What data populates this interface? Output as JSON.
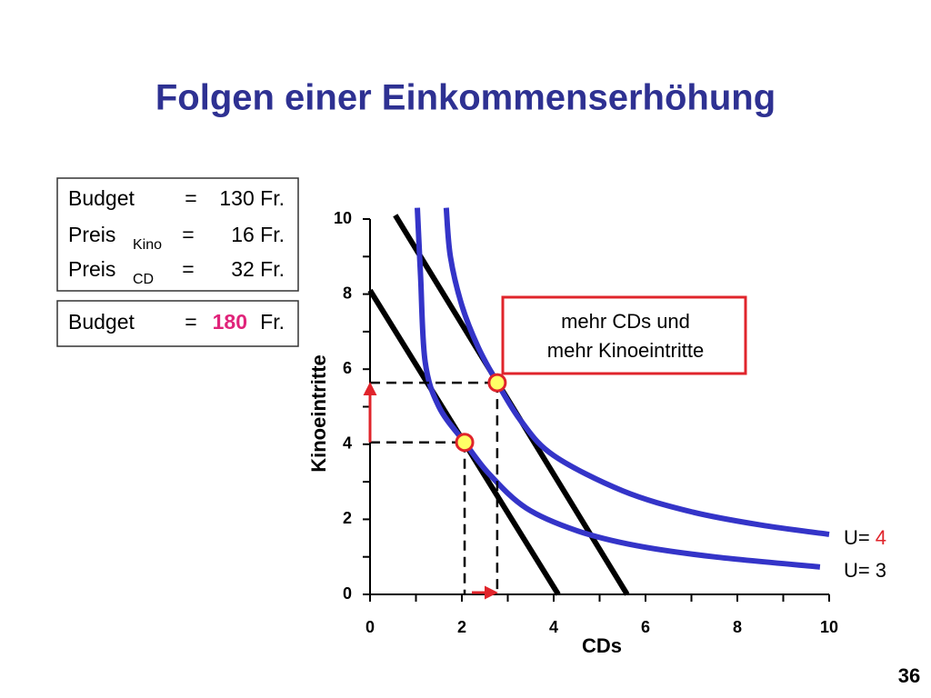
{
  "title": "Folgen einer Einkommenserhöhung",
  "info_box": {
    "rows": [
      [
        "Budget",
        "=",
        "130 Fr."
      ],
      [
        "Preis",
        "Kino",
        "=",
        "16 Fr."
      ],
      [
        "Preis",
        "CD",
        "=",
        "32 Fr."
      ]
    ]
  },
  "new_budget_box": {
    "row": [
      "Budget",
      "=",
      180,
      "Fr."
    ],
    "highlight_color": "#e0247a"
  },
  "chart_data": {
    "type": "line",
    "xlabel": "CDs",
    "ylabel": "Kinoeintritte",
    "xlim": [
      0,
      10
    ],
    "ylim": [
      0,
      10
    ],
    "xticks": [
      0,
      2,
      4,
      6,
      8,
      10
    ],
    "yticks": [
      0,
      2,
      4,
      6,
      8,
      10
    ],
    "xminorticks": [
      1,
      3,
      5,
      7,
      9
    ],
    "yminorticks": [
      1,
      3,
      5,
      7,
      9
    ],
    "budget_lines": [
      {
        "color": "#000000",
        "x": [
          0,
          4.1
        ],
        "y": [
          8.1,
          0
        ]
      },
      {
        "color": "#000000",
        "x": [
          0.55,
          5.6
        ],
        "y": [
          10.1,
          0
        ]
      }
    ],
    "indifference_curves": [
      {
        "label": "U=",
        "level": 4,
        "level_color": "#e0242b",
        "color": "#3434c8",
        "x": [
          1.66,
          1.75,
          2.0,
          2.35,
          2.77,
          3.3,
          4.0,
          5.5,
          7.0,
          8.5,
          10
        ],
        "y": [
          10.3,
          9.0,
          7.7,
          6.6,
          5.64,
          4.6,
          3.7,
          2.76,
          2.2,
          1.85,
          1.6
        ]
      },
      {
        "label": "U=",
        "level": 3,
        "level_color": "#000000",
        "color": "#3434c8",
        "x": [
          1.03,
          1.1,
          1.2,
          1.5,
          2.06,
          2.6,
          3.4,
          4.5,
          5.8,
          7.5,
          9.8
        ],
        "y": [
          10.3,
          8.5,
          6.2,
          5.0,
          4.05,
          3.2,
          2.3,
          1.7,
          1.3,
          1.0,
          0.73
        ]
      }
    ],
    "optima": {
      "x": [
        2.06,
        2.77
      ],
      "y": [
        4.05,
        5.64
      ],
      "fill": "#ffff66",
      "stroke": "#e0242b"
    },
    "shift_color": "#e0242b",
    "annotation": [
      "mehr CDs und",
      "mehr Kinoeintritte"
    ]
  },
  "page_number": 36
}
